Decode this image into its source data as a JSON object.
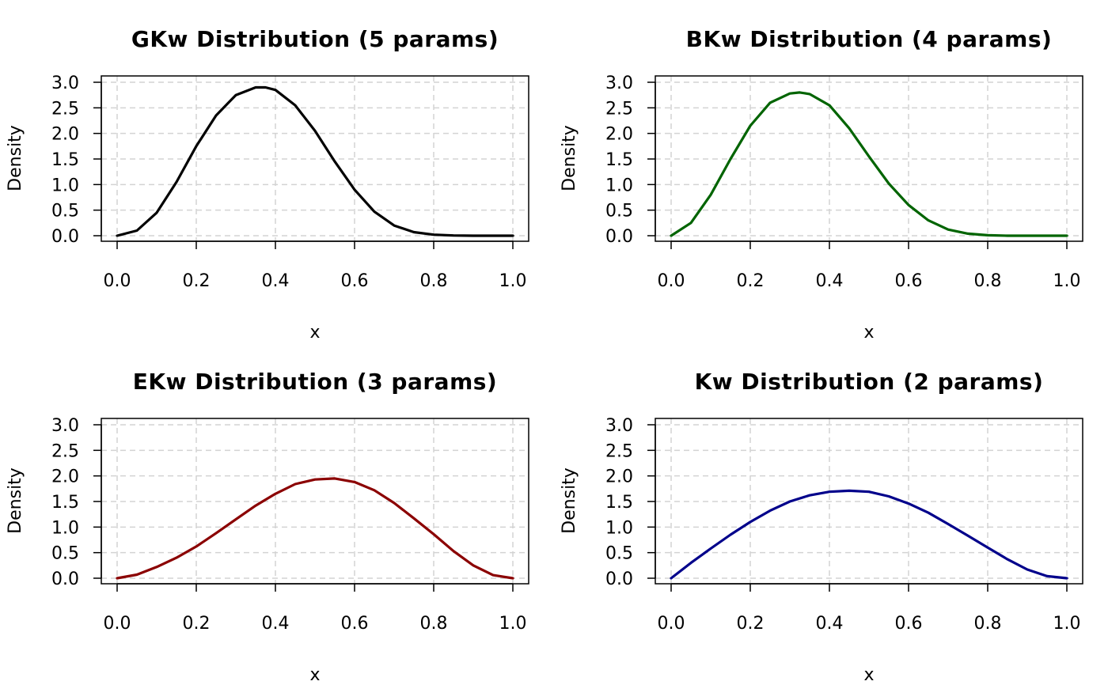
{
  "chart_data": [
    {
      "type": "line",
      "title": "GKw Distribution (5 params)",
      "xlabel": "x",
      "ylabel": "Density",
      "xlim": [
        0,
        1
      ],
      "ylim": [
        0,
        3.0
      ],
      "grid": true,
      "x_ticks": [
        "0.0",
        "0.2",
        "0.4",
        "0.6",
        "0.8",
        "1.0"
      ],
      "y_ticks": [
        "0.0",
        "0.5",
        "1.0",
        "1.5",
        "2.0",
        "2.5",
        "3.0"
      ],
      "color": "#000000",
      "series": [
        {
          "x": [
            0.0,
            0.05,
            0.1,
            0.15,
            0.2,
            0.25,
            0.3,
            0.35,
            0.375,
            0.4,
            0.45,
            0.5,
            0.55,
            0.6,
            0.65,
            0.7,
            0.75,
            0.8,
            0.85,
            0.9,
            0.95,
            1.0
          ],
          "y": [
            0.0,
            0.1,
            0.45,
            1.05,
            1.75,
            2.35,
            2.75,
            2.9,
            2.9,
            2.85,
            2.55,
            2.05,
            1.45,
            0.9,
            0.47,
            0.2,
            0.07,
            0.02,
            0.005,
            0.0,
            0.0,
            0.0
          ]
        }
      ]
    },
    {
      "type": "line",
      "title": "BKw Distribution (4 params)",
      "xlabel": "x",
      "ylabel": "Density",
      "xlim": [
        0,
        1
      ],
      "ylim": [
        0,
        3.0
      ],
      "grid": true,
      "x_ticks": [
        "0.0",
        "0.2",
        "0.4",
        "0.6",
        "0.8",
        "1.0"
      ],
      "y_ticks": [
        "0.0",
        "0.5",
        "1.0",
        "1.5",
        "2.0",
        "2.5",
        "3.0"
      ],
      "color": "#006400",
      "series": [
        {
          "x": [
            0.0,
            0.05,
            0.1,
            0.15,
            0.2,
            0.25,
            0.3,
            0.325,
            0.35,
            0.4,
            0.45,
            0.5,
            0.55,
            0.6,
            0.65,
            0.7,
            0.75,
            0.8,
            0.85,
            0.9,
            0.95,
            1.0
          ],
          "y": [
            0.0,
            0.25,
            0.8,
            1.5,
            2.15,
            2.6,
            2.78,
            2.8,
            2.77,
            2.55,
            2.1,
            1.55,
            1.02,
            0.6,
            0.3,
            0.12,
            0.04,
            0.01,
            0.0,
            0.0,
            0.0,
            0.0
          ]
        }
      ]
    },
    {
      "type": "line",
      "title": "EKw Distribution (3 params)",
      "xlabel": "x",
      "ylabel": "Density",
      "xlim": [
        0,
        1
      ],
      "ylim": [
        0,
        3.0
      ],
      "grid": true,
      "x_ticks": [
        "0.0",
        "0.2",
        "0.4",
        "0.6",
        "0.8",
        "1.0"
      ],
      "y_ticks": [
        "0.0",
        "0.5",
        "1.0",
        "1.5",
        "2.0",
        "2.5",
        "3.0"
      ],
      "color": "#8B0000",
      "series": [
        {
          "x": [
            0.0,
            0.05,
            0.1,
            0.15,
            0.2,
            0.25,
            0.3,
            0.35,
            0.4,
            0.45,
            0.5,
            0.55,
            0.6,
            0.65,
            0.7,
            0.75,
            0.8,
            0.85,
            0.9,
            0.95,
            1.0
          ],
          "y": [
            0.0,
            0.07,
            0.22,
            0.4,
            0.62,
            0.88,
            1.15,
            1.42,
            1.65,
            1.84,
            1.93,
            1.95,
            1.88,
            1.72,
            1.47,
            1.17,
            0.86,
            0.53,
            0.25,
            0.06,
            0.0
          ]
        }
      ]
    },
    {
      "type": "line",
      "title": "Kw Distribution (2 params)",
      "xlabel": "x",
      "ylabel": "Density",
      "xlim": [
        0,
        1
      ],
      "ylim": [
        0,
        3.0
      ],
      "grid": true,
      "x_ticks": [
        "0.0",
        "0.2",
        "0.4",
        "0.6",
        "0.8",
        "1.0"
      ],
      "y_ticks": [
        "0.0",
        "0.5",
        "1.0",
        "1.5",
        "2.0",
        "2.5",
        "3.0"
      ],
      "color": "#00008B",
      "series": [
        {
          "x": [
            0.0,
            0.05,
            0.1,
            0.15,
            0.2,
            0.25,
            0.3,
            0.35,
            0.4,
            0.45,
            0.5,
            0.55,
            0.6,
            0.65,
            0.7,
            0.75,
            0.8,
            0.85,
            0.9,
            0.95,
            1.0
          ],
          "y": [
            0.0,
            0.3,
            0.58,
            0.85,
            1.1,
            1.32,
            1.5,
            1.62,
            1.69,
            1.71,
            1.69,
            1.6,
            1.46,
            1.28,
            1.06,
            0.83,
            0.6,
            0.37,
            0.17,
            0.04,
            0.0
          ]
        }
      ]
    }
  ]
}
